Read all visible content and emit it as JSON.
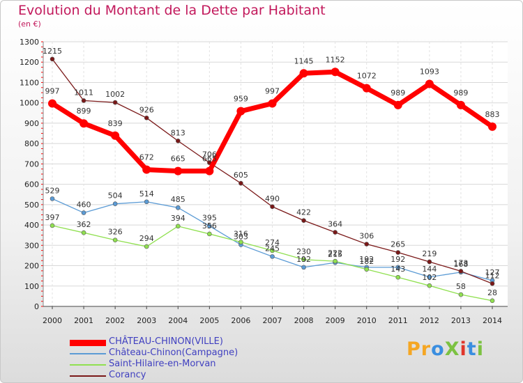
{
  "title": "Evolution du Montant de la Dette par Habitant",
  "subtitle": "(en €)",
  "logo": "ProXiti",
  "logo_colors": [
    "#f5a623",
    "#3a8ee0",
    "#7cc242",
    "#e0352b"
  ],
  "chart_data": {
    "type": "line",
    "x": [
      "2000",
      "2001",
      "2002",
      "2003",
      "2004",
      "2005",
      "2006",
      "2007",
      "2008",
      "2009",
      "2010",
      "2011",
      "2012",
      "2013",
      "2014"
    ],
    "ylim": [
      0,
      1300
    ],
    "yticks": [
      0,
      100,
      200,
      300,
      400,
      500,
      600,
      700,
      800,
      900,
      1000,
      1100,
      1200,
      1300
    ],
    "grid": true,
    "legend_position": "bottom-left",
    "series": [
      {
        "name": "CHÂTEAU-CHINON(VILLE)",
        "color": "#ff0000",
        "width": 7,
        "marker": 6,
        "values": [
          997,
          899,
          839,
          672,
          665,
          665,
          959,
          997,
          1145,
          1152,
          1072,
          989,
          1093,
          989,
          883
        ],
        "labels": [
          "997",
          "899",
          "839",
          "672",
          "665",
          "665",
          "959",
          "997",
          "1145",
          "1152",
          "1072",
          "989",
          "1093",
          "989",
          "883"
        ]
      },
      {
        "name": "Château-Chinon(Campagne)",
        "color": "#5b9bd5",
        "width": 1.3,
        "marker": 3,
        "values": [
          529,
          460,
          504,
          514,
          485,
          395,
          303,
          245,
          192,
          215,
          192,
          192,
          144,
          168,
          127
        ],
        "labels": [
          "529",
          "460",
          "504",
          "514",
          "485",
          "395",
          "303",
          "245",
          "192",
          "215",
          "192",
          "192",
          "144",
          "168",
          "127"
        ]
      },
      {
        "name": "Saint-Hilaire-en-Morvan",
        "color": "#90e050",
        "width": 1.3,
        "marker": 3,
        "values": [
          397,
          362,
          326,
          294,
          394,
          356,
          316,
          274,
          230,
          222,
          182,
          143,
          102,
          58,
          28
        ],
        "labels": [
          "397",
          "362",
          "326",
          "294",
          "394",
          "356",
          "316",
          "274",
          "230",
          "222",
          "182",
          "143",
          "102",
          "58",
          "28"
        ]
      },
      {
        "name": "Corancy",
        "color": "#7a1818",
        "width": 1.3,
        "marker": 3,
        "values": [
          1215,
          1011,
          1002,
          926,
          813,
          706,
          605,
          490,
          422,
          364,
          306,
          265,
          219,
          173,
          112
        ],
        "labels": [
          "1215",
          "1011",
          "1002",
          "926",
          "813",
          "706",
          "605",
          "490",
          "422",
          "364",
          "306",
          "265",
          "219",
          "173",
          "112"
        ]
      }
    ]
  }
}
